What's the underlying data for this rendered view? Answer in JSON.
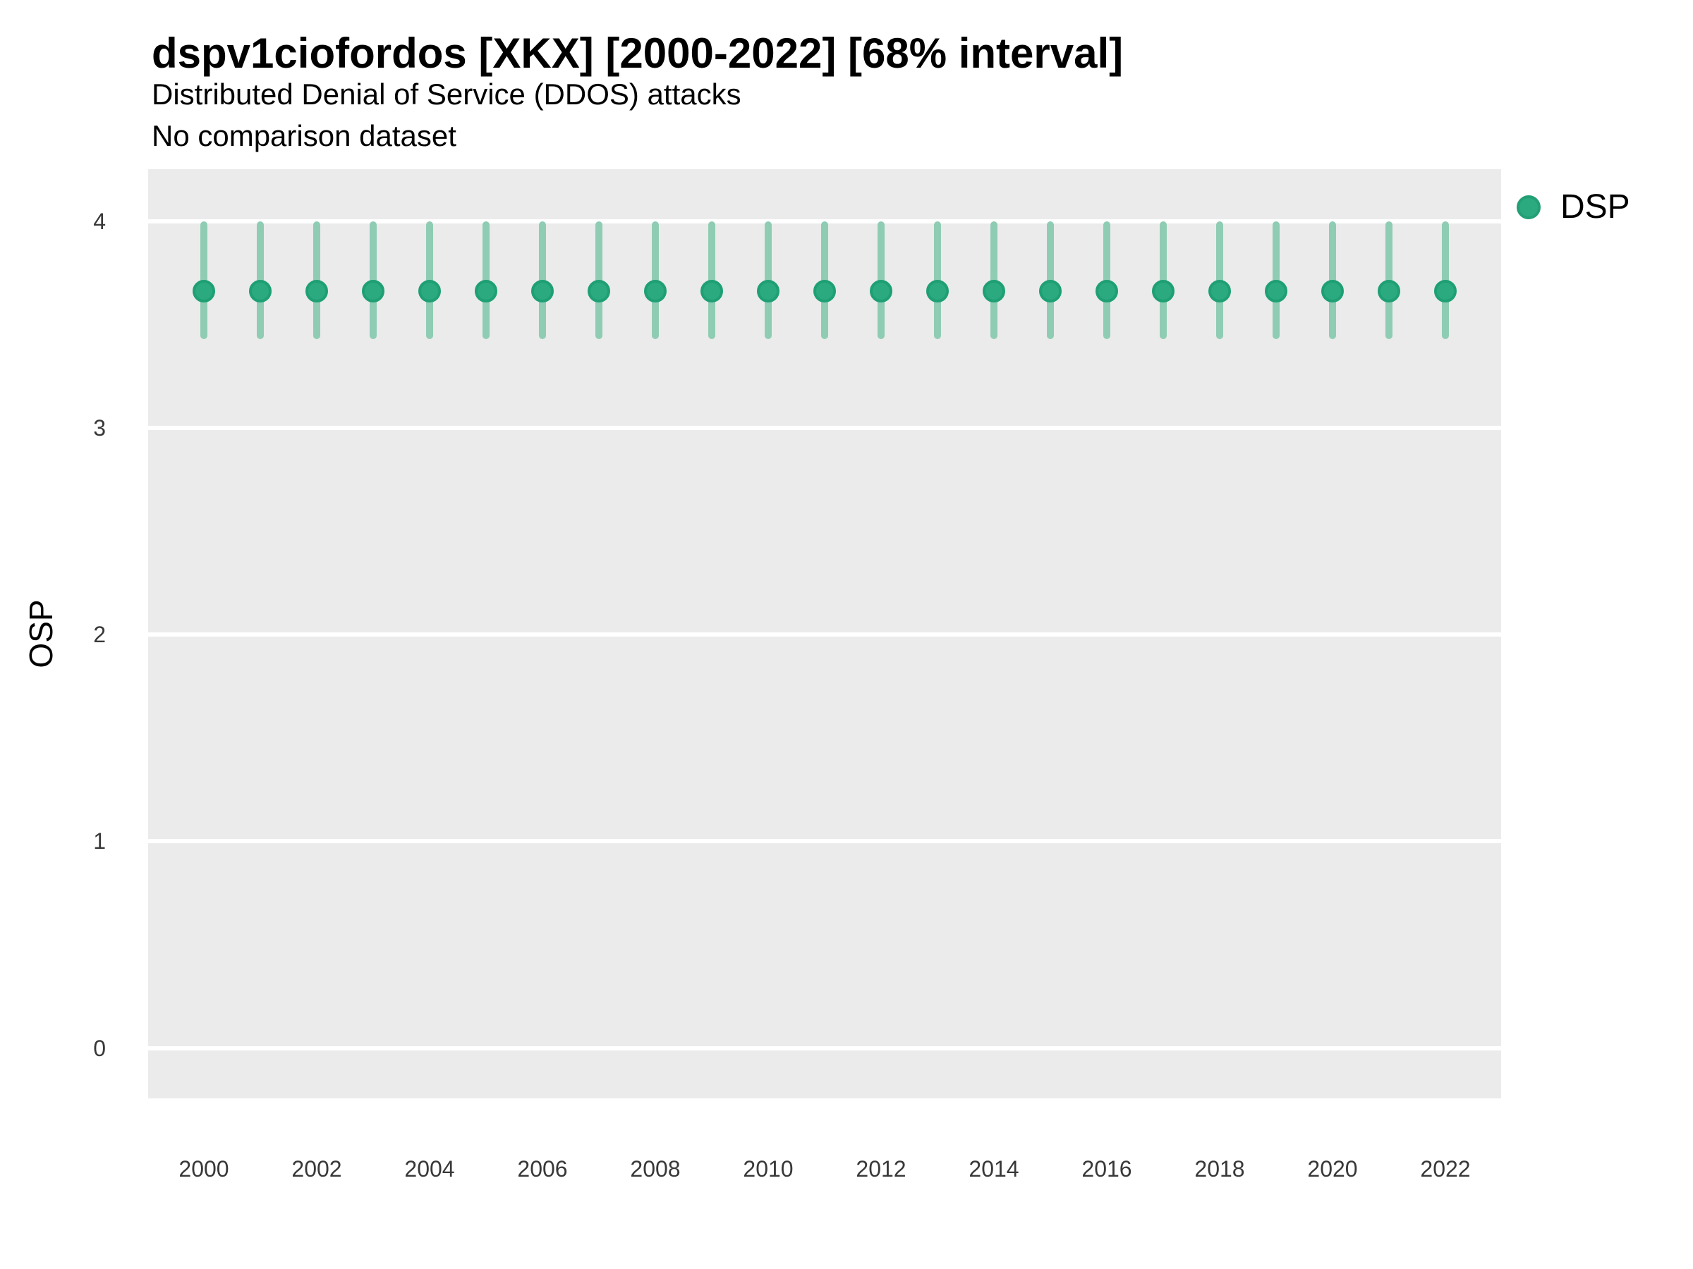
{
  "header": {
    "title": "dspv1ciofordos [XKX] [2000-2022] [68% interval]",
    "subtitle": "Distributed Denial of Service (DDOS) attacks",
    "note": "No comparison dataset"
  },
  "axes": {
    "y_title": "OSP",
    "y_ticks": [
      4,
      3,
      2,
      1,
      0
    ],
    "x_ticks": [
      2000,
      2002,
      2004,
      2006,
      2008,
      2010,
      2012,
      2014,
      2016,
      2018,
      2020,
      2022
    ]
  },
  "legend": {
    "items": [
      {
        "label": "DSP",
        "color": "#2caa7f"
      }
    ]
  },
  "colors": {
    "panel_background": "#ebebeb",
    "gridline": "#ffffff",
    "interval_line": "#8fccb4",
    "point_fill": "#2caa7f",
    "point_ring": "#1e9f74"
  },
  "chart_data": {
    "type": "scatter",
    "subtype": "pointrange",
    "title": "dspv1ciofordos [XKX] [2000-2022] [68% interval]",
    "subtitle": "Distributed Denial of Service (DDOS) attacks",
    "note": "No comparison dataset",
    "interval": "68%",
    "xlabel": "",
    "ylabel": "OSP",
    "ylim": [
      -0.24,
      4.25
    ],
    "grid": "major-horizontal-only",
    "legend_position": "right",
    "x": [
      2000,
      2001,
      2002,
      2003,
      2004,
      2005,
      2006,
      2007,
      2008,
      2009,
      2010,
      2011,
      2012,
      2013,
      2014,
      2015,
      2016,
      2017,
      2018,
      2019,
      2020,
      2021,
      2022
    ],
    "series": [
      {
        "name": "DSP",
        "values": [
          3.66,
          3.66,
          3.66,
          3.66,
          3.66,
          3.66,
          3.66,
          3.66,
          3.66,
          3.66,
          3.66,
          3.66,
          3.66,
          3.66,
          3.66,
          3.66,
          3.66,
          3.66,
          3.66,
          3.66,
          3.66,
          3.66,
          3.66
        ],
        "low": [
          3.43,
          3.43,
          3.43,
          3.43,
          3.43,
          3.43,
          3.43,
          3.43,
          3.43,
          3.43,
          3.43,
          3.43,
          3.43,
          3.43,
          3.43,
          3.43,
          3.43,
          3.43,
          3.43,
          3.43,
          3.43,
          3.43,
          3.43
        ],
        "high": [
          4.0,
          4.0,
          4.0,
          4.0,
          4.0,
          4.0,
          4.0,
          4.0,
          4.0,
          4.0,
          4.0,
          4.0,
          4.0,
          4.0,
          4.0,
          4.0,
          4.0,
          4.0,
          4.0,
          4.0,
          4.0,
          4.0,
          4.0
        ]
      }
    ]
  }
}
